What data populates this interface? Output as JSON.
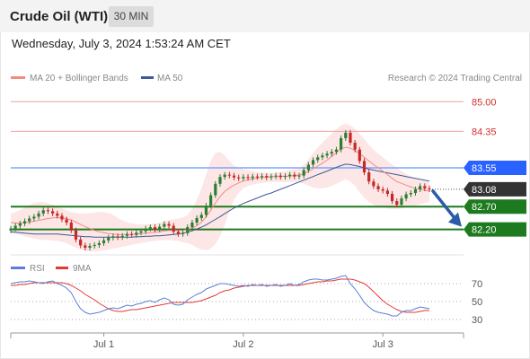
{
  "header": {
    "title": "Crude Oil (WTI)",
    "interval": "30 MIN",
    "datetime": "Wednesday, July 3, 2024 1:53:24 AM CET"
  },
  "legend": {
    "ma20": "MA 20 + Bollinger Bands",
    "ma50": "MA 50",
    "credit": "Research © 2024 Trading Central",
    "rsi": "RSI",
    "rsi_ma": "9MA"
  },
  "colors": {
    "ma20": "#f28b82",
    "ma50": "#3c5a9a",
    "bollinger": "#fde2e2",
    "candle_up": "#2e7d32",
    "candle_down": "#c62828",
    "level_red": "#f4a0a0",
    "level_blue": "#7aa6ff",
    "level_green": "#1e7a1e",
    "pivot": "#333333",
    "arrow": "#2a5caa",
    "rsi": "#5b7fd6",
    "rsi_ma": "#e53935"
  },
  "chart_data": [
    {
      "type": "line",
      "name": "price",
      "x_labels": [
        "Jul 1",
        "Jul 2",
        "Jul 3"
      ],
      "x_label_index": [
        20,
        50,
        80
      ],
      "ylim": [
        81.8,
        85.3
      ],
      "levels": [
        {
          "value": 85.0,
          "label": "85.00",
          "style": "resistance"
        },
        {
          "value": 84.35,
          "label": "84.35",
          "style": "resistance"
        },
        {
          "value": 83.55,
          "label": "83.55",
          "style": "target"
        },
        {
          "value": 83.08,
          "label": "83.08",
          "style": "pivot"
        },
        {
          "value": 82.7,
          "label": "82.70",
          "style": "support"
        },
        {
          "value": 82.2,
          "label": "82.20",
          "style": "support"
        }
      ],
      "close": [
        82.22,
        82.28,
        82.33,
        82.38,
        82.44,
        82.48,
        82.55,
        82.62,
        82.6,
        82.55,
        82.5,
        82.42,
        82.35,
        82.18,
        81.98,
        81.85,
        81.8,
        81.84,
        81.86,
        81.9,
        81.96,
        82.02,
        82.05,
        82.03,
        82.06,
        82.1,
        82.08,
        82.13,
        82.16,
        82.22,
        82.25,
        82.2,
        82.26,
        82.32,
        82.28,
        82.15,
        82.1,
        82.12,
        82.25,
        82.35,
        82.45,
        82.52,
        82.72,
        82.95,
        83.2,
        83.35,
        83.4,
        83.38,
        83.34,
        83.32,
        83.35,
        83.33,
        83.36,
        83.35,
        83.37,
        83.34,
        83.36,
        83.38,
        83.35,
        83.37,
        83.4,
        83.36,
        83.38,
        83.5,
        83.62,
        83.72,
        83.78,
        83.82,
        83.86,
        83.9,
        83.95,
        84.2,
        84.32,
        84.1,
        83.95,
        83.7,
        83.45,
        83.25,
        83.15,
        83.08,
        83.05,
        82.98,
        82.82,
        82.74,
        82.88,
        82.97,
        83.0,
        83.08,
        83.15,
        83.1,
        83.08
      ],
      "ma20": [
        82.35,
        82.34,
        82.34,
        82.35,
        82.36,
        82.38,
        82.4,
        82.42,
        82.44,
        82.45,
        82.46,
        82.45,
        82.44,
        82.41,
        82.36,
        82.31,
        82.26,
        82.22,
        82.18,
        82.15,
        82.13,
        82.11,
        82.1,
        82.09,
        82.09,
        82.09,
        82.09,
        82.1,
        82.11,
        82.12,
        82.13,
        82.14,
        82.15,
        82.17,
        82.18,
        82.18,
        82.18,
        82.18,
        82.2,
        82.23,
        82.28,
        82.36,
        82.48,
        82.62,
        82.78,
        82.92,
        83.03,
        83.11,
        83.17,
        83.22,
        83.26,
        83.29,
        83.31,
        83.33,
        83.34,
        83.35,
        83.36,
        83.36,
        83.36,
        83.37,
        83.37,
        83.38,
        83.39,
        83.42,
        83.47,
        83.53,
        83.59,
        83.65,
        83.72,
        83.8,
        83.88,
        83.97,
        84.0,
        83.98,
        83.93,
        83.86,
        83.78,
        83.7,
        83.62,
        83.55,
        83.48,
        83.4,
        83.32,
        83.25,
        83.21,
        83.17,
        83.13,
        83.1,
        83.08,
        83.06,
        83.04
      ],
      "ma50": [
        82.15,
        82.14,
        82.13,
        82.12,
        82.11,
        82.1,
        82.1,
        82.1,
        82.1,
        82.1,
        82.1,
        82.09,
        82.08,
        82.07,
        82.06,
        82.05,
        82.04,
        82.04,
        82.03,
        82.03,
        82.03,
        82.03,
        82.03,
        82.03,
        82.03,
        82.03,
        82.03,
        82.04,
        82.04,
        82.05,
        82.05,
        82.06,
        82.06,
        82.07,
        82.08,
        82.09,
        82.1,
        82.12,
        82.14,
        82.17,
        82.21,
        82.25,
        82.3,
        82.36,
        82.42,
        82.48,
        82.55,
        82.61,
        82.67,
        82.72,
        82.77,
        82.81,
        82.85,
        82.89,
        82.93,
        82.97,
        83.0,
        83.04,
        83.08,
        83.12,
        83.16,
        83.2,
        83.24,
        83.28,
        83.32,
        83.36,
        83.4,
        83.44,
        83.48,
        83.52,
        83.56,
        83.6,
        83.63,
        83.62,
        83.6,
        83.58,
        83.55,
        83.52,
        83.5,
        83.48,
        83.46,
        83.44,
        83.42,
        83.4,
        83.38,
        83.36,
        83.34,
        83.32,
        83.3,
        83.28,
        83.26
      ],
      "bb_upper": [
        82.55,
        82.58,
        82.62,
        82.68,
        82.74,
        82.78,
        82.8,
        82.8,
        82.78,
        82.74,
        82.7,
        82.66,
        82.62,
        82.58,
        82.56,
        82.55,
        82.55,
        82.56,
        82.57,
        82.58,
        82.58,
        82.56,
        82.52,
        82.45,
        82.4,
        82.36,
        82.33,
        82.32,
        82.31,
        82.31,
        82.32,
        82.33,
        82.35,
        82.38,
        82.4,
        82.42,
        82.44,
        82.46,
        82.52,
        82.65,
        82.85,
        83.1,
        83.4,
        83.7,
        83.88,
        83.9,
        83.82,
        83.7,
        83.6,
        83.55,
        83.52,
        83.5,
        83.48,
        83.46,
        83.45,
        83.44,
        83.44,
        83.45,
        83.46,
        83.48,
        83.5,
        83.52,
        83.55,
        83.62,
        83.74,
        83.88,
        84.0,
        84.1,
        84.2,
        84.3,
        84.4,
        84.48,
        84.52,
        84.48,
        84.4,
        84.3,
        84.18,
        84.06,
        83.95,
        83.86,
        83.78,
        83.7,
        83.62,
        83.55,
        83.48,
        83.42,
        83.36,
        83.32,
        83.28,
        83.26,
        83.24
      ],
      "bb_lower": [
        82.12,
        82.1,
        82.08,
        82.05,
        82.02,
        82.0,
        81.98,
        81.97,
        81.97,
        81.96,
        81.95,
        81.93,
        81.9,
        81.85,
        81.8,
        81.76,
        81.73,
        81.72,
        81.72,
        81.73,
        81.74,
        81.76,
        81.78,
        81.8,
        81.82,
        81.84,
        81.86,
        81.88,
        81.9,
        81.92,
        81.94,
        81.95,
        81.96,
        81.97,
        81.97,
        81.96,
        81.94,
        81.92,
        81.9,
        81.86,
        81.8,
        81.76,
        81.75,
        81.78,
        81.88,
        82.05,
        82.3,
        82.6,
        82.85,
        83.0,
        83.1,
        83.15,
        83.18,
        83.2,
        83.22,
        83.23,
        83.24,
        83.24,
        83.24,
        83.24,
        83.24,
        83.24,
        83.23,
        83.2,
        83.16,
        83.12,
        83.1,
        83.1,
        83.12,
        83.15,
        83.2,
        83.25,
        83.3,
        83.25,
        83.15,
        83.02,
        82.9,
        82.8,
        82.74,
        82.7,
        82.68,
        82.66,
        82.65,
        82.65,
        82.66,
        82.68,
        82.7,
        82.72,
        82.75,
        82.78,
        82.8
      ]
    },
    {
      "type": "line",
      "name": "RSI",
      "ylim": [
        20,
        80
      ],
      "levels": [
        70,
        50,
        30
      ],
      "tick_labels": [
        "70",
        "50",
        "30"
      ],
      "rsi": [
        70,
        71,
        72,
        72,
        73,
        72,
        71,
        70,
        72,
        73,
        70,
        68,
        65,
        60,
        50,
        42,
        38,
        36,
        37,
        38,
        40,
        42,
        43,
        42,
        44,
        46,
        45,
        47,
        48,
        50,
        51,
        49,
        52,
        54,
        52,
        47,
        46,
        47,
        52,
        55,
        58,
        60,
        64,
        66,
        68,
        70,
        70,
        69,
        68,
        67,
        68,
        67,
        69,
        68,
        69,
        67,
        68,
        69,
        67,
        68,
        70,
        68,
        69,
        72,
        74,
        75,
        75,
        74,
        74,
        75,
        76,
        78,
        79,
        70,
        64,
        57,
        49,
        44,
        40,
        38,
        37,
        36,
        34,
        34,
        38,
        40,
        40,
        42,
        44,
        43,
        42
      ],
      "rsi_ma": [
        68,
        68,
        69,
        69,
        70,
        71,
        71,
        71,
        71,
        71,
        71,
        71,
        70,
        68,
        65,
        62,
        58,
        55,
        52,
        48,
        45,
        42,
        40,
        39,
        39,
        40,
        41,
        41,
        42,
        43,
        44,
        45,
        46,
        47,
        48,
        49,
        49,
        49,
        49,
        49,
        50,
        51,
        53,
        55,
        57,
        60,
        62,
        63,
        65,
        66,
        67,
        68,
        68,
        68,
        68,
        68,
        68,
        68,
        68,
        68,
        68,
        68,
        68,
        69,
        70,
        71,
        72,
        72,
        73,
        73,
        74,
        75,
        75,
        75,
        74,
        72,
        70,
        66,
        61,
        56,
        51,
        47,
        44,
        41,
        39,
        38,
        38,
        38,
        39,
        40,
        40
      ]
    }
  ]
}
